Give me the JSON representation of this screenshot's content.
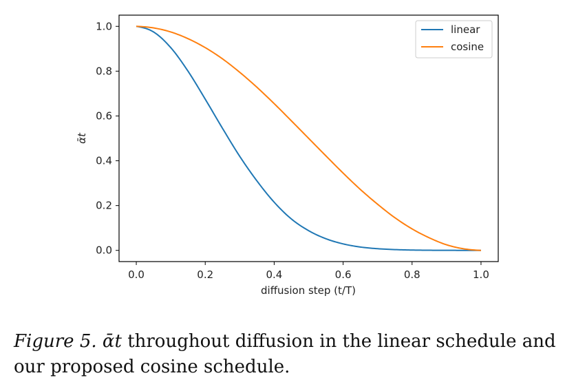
{
  "chart_data": {
    "type": "line",
    "xlabel": "diffusion step (t/T)",
    "ylabel": "ᾱt",
    "xlim": [
      -0.05,
      1.05
    ],
    "ylim": [
      -0.05,
      1.05
    ],
    "xticks": [
      "0.0",
      "0.2",
      "0.4",
      "0.6",
      "0.8",
      "1.0"
    ],
    "yticks": [
      "0.0",
      "0.2",
      "0.4",
      "0.6",
      "0.8",
      "1.0"
    ],
    "grid": false,
    "legend_position": "top-right",
    "x": [
      0.0,
      0.05,
      0.1,
      0.15,
      0.2,
      0.25,
      0.3,
      0.35,
      0.4,
      0.45,
      0.5,
      0.55,
      0.6,
      0.65,
      0.7,
      0.75,
      0.8,
      0.85,
      0.9,
      0.95,
      1.0
    ],
    "series": [
      {
        "name": "linear",
        "color": "#1f77b4",
        "values": [
          1.0,
          0.975,
          0.905,
          0.8,
          0.675,
          0.545,
          0.42,
          0.31,
          0.215,
          0.14,
          0.088,
          0.052,
          0.029,
          0.015,
          0.0075,
          0.0035,
          0.0015,
          0.0006,
          0.0002,
          0.0001,
          0.0
        ]
      },
      {
        "name": "cosine",
        "color": "#ff7f0e",
        "values": [
          1.0,
          0.993,
          0.975,
          0.945,
          0.905,
          0.855,
          0.795,
          0.728,
          0.655,
          0.578,
          0.5,
          0.422,
          0.345,
          0.272,
          0.206,
          0.146,
          0.096,
          0.056,
          0.025,
          0.007,
          0.0
        ]
      }
    ]
  },
  "caption": {
    "label": "Figure 5.",
    "symbol": "ᾱt",
    "text": "throughout diffusion in the linear schedule and our proposed cosine schedule."
  }
}
